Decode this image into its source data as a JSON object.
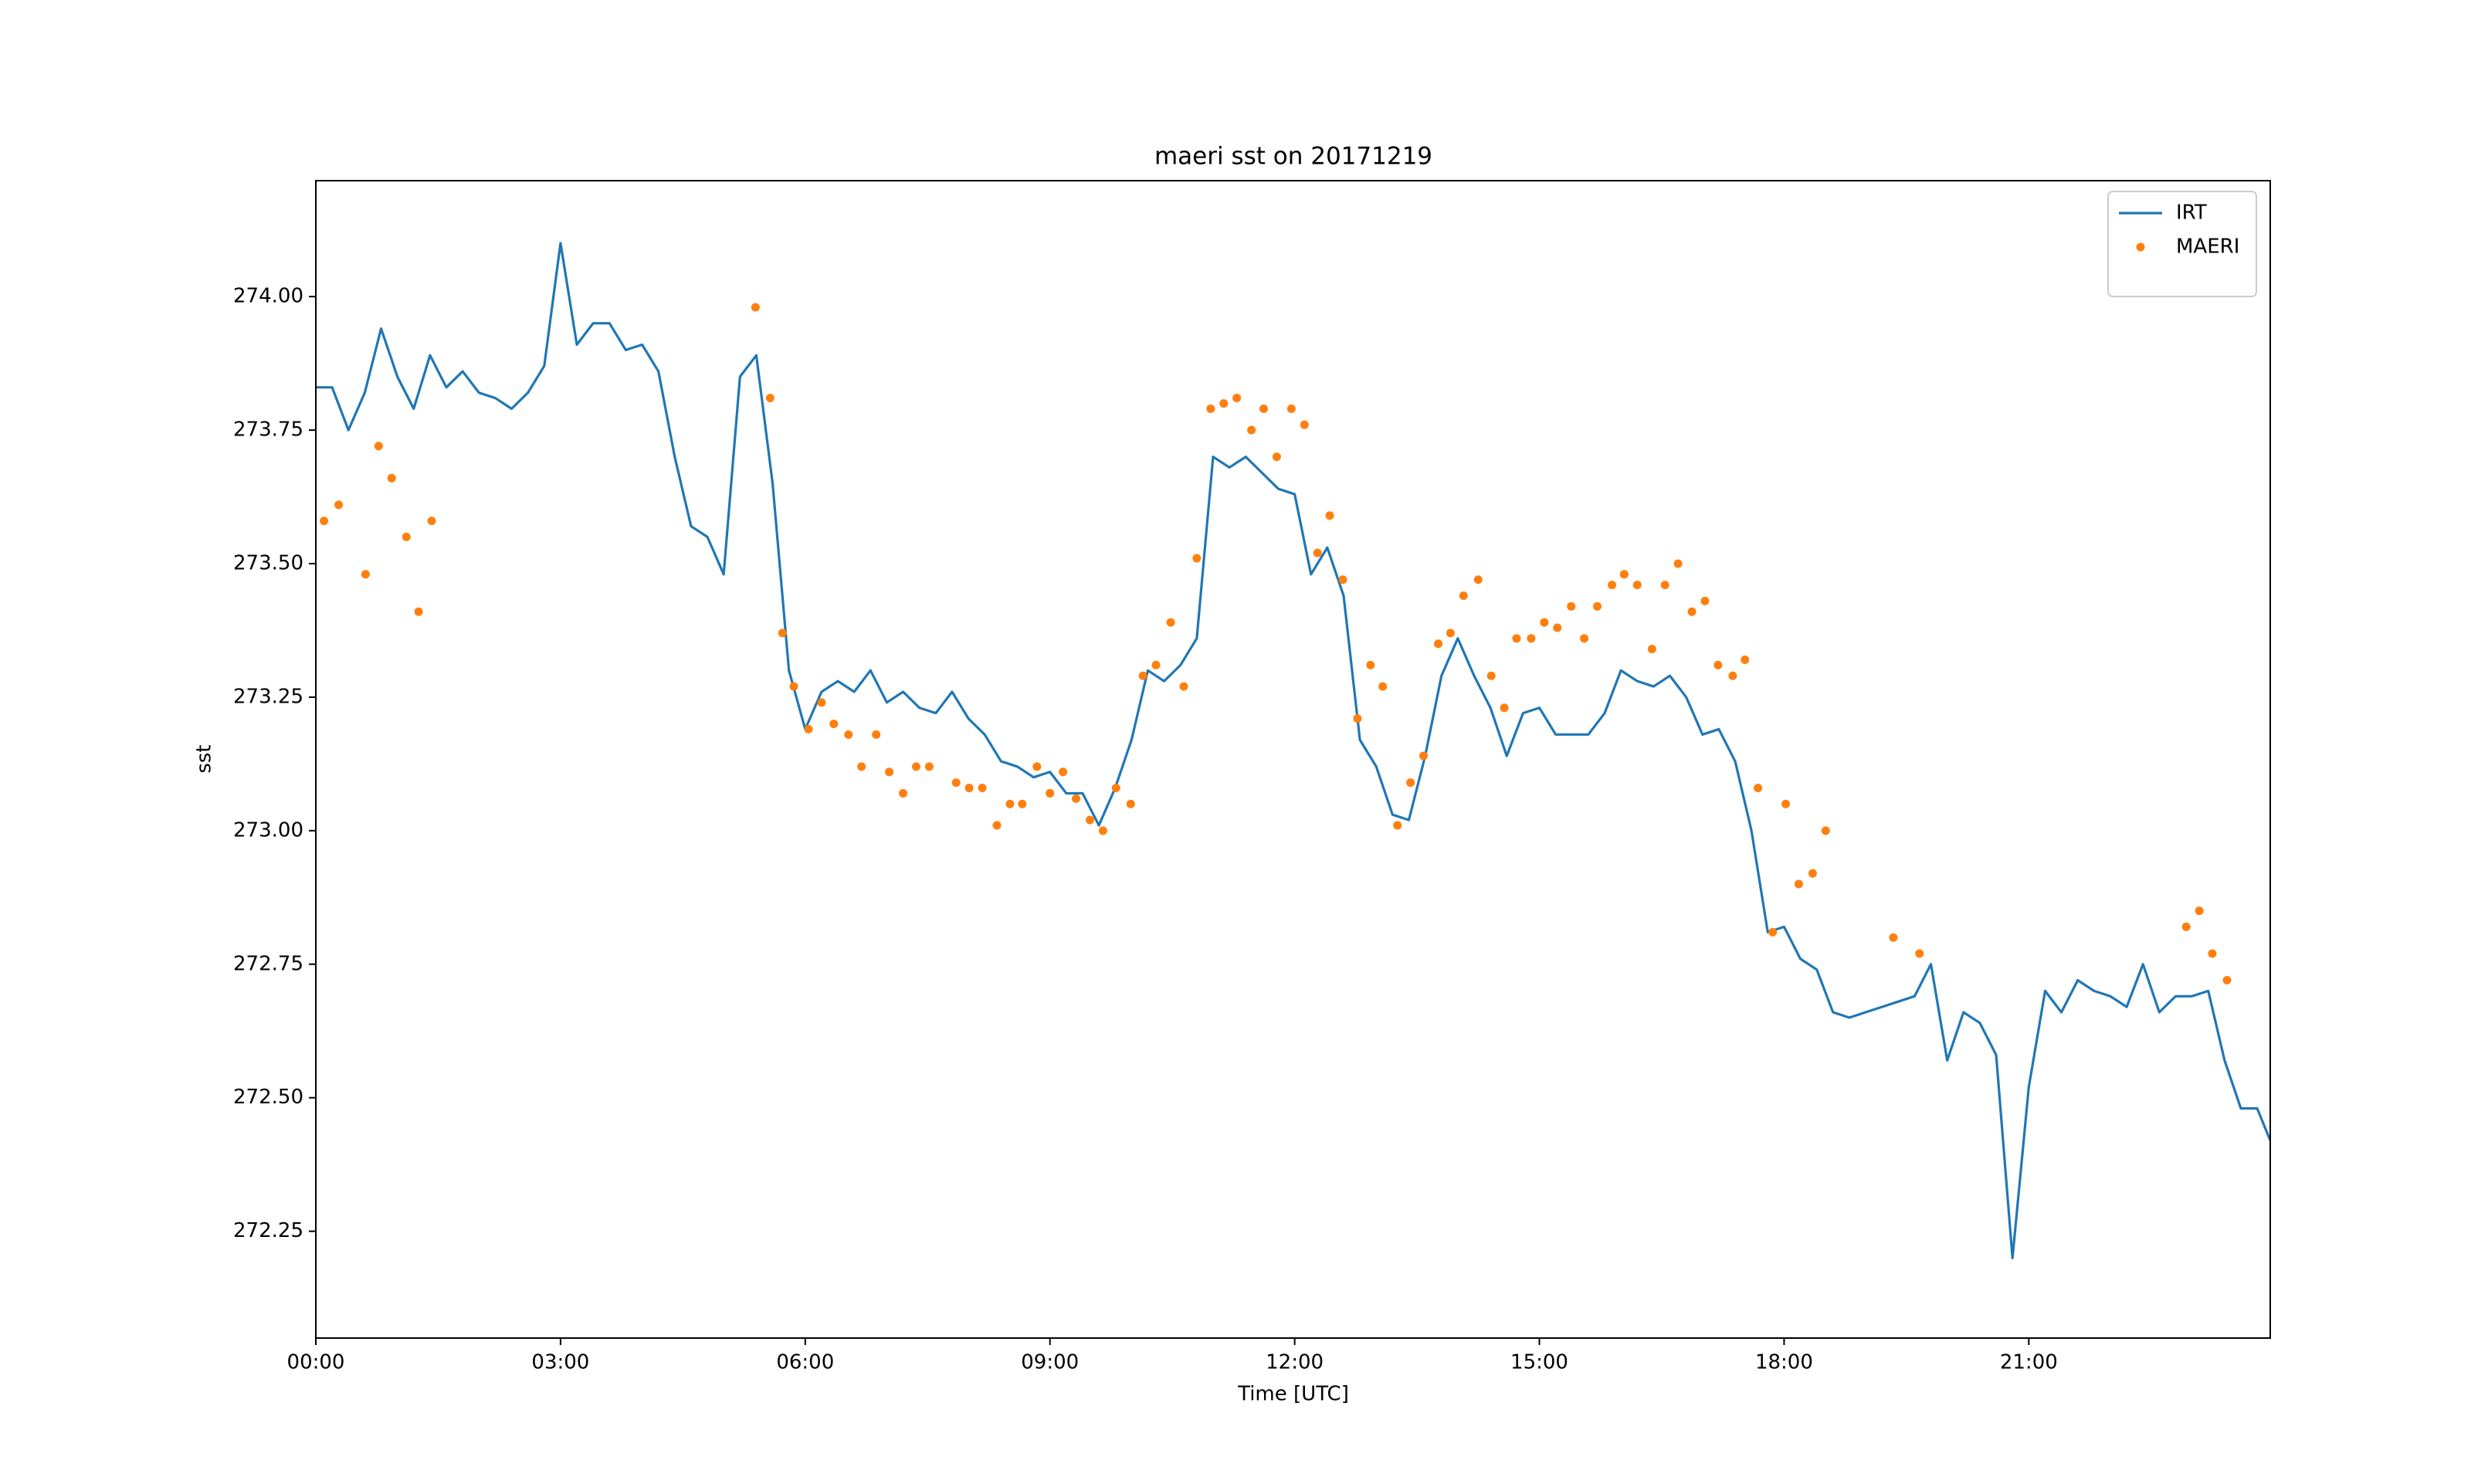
{
  "chart_data": {
    "type": "line",
    "title": "maeri sst on 20171219",
    "x_label": "Time [UTC]",
    "y_label": "sst",
    "legend": "upper right",
    "xlim": [
      0,
      23.96
    ],
    "ylim": [
      272.05,
      274.217
    ],
    "xticks": [
      {
        "value": 0,
        "label": "00:00"
      },
      {
        "value": 3,
        "label": "03:00"
      },
      {
        "value": 6,
        "label": "06:00"
      },
      {
        "value": 9,
        "label": "09:00"
      },
      {
        "value": 12,
        "label": "12:00"
      },
      {
        "value": 15,
        "label": "15:00"
      },
      {
        "value": 18,
        "label": "18:00"
      },
      {
        "value": 21,
        "label": "21:00"
      }
    ],
    "yticks": [
      {
        "value": 272.25,
        "label": "272.25"
      },
      {
        "value": 272.5,
        "label": "272.50"
      },
      {
        "value": 272.75,
        "label": "272.75"
      },
      {
        "value": 273,
        "label": "273.00"
      },
      {
        "value": 273.25,
        "label": "273.25"
      },
      {
        "value": 273.5,
        "label": "273.50"
      },
      {
        "value": 273.75,
        "label": "273.75"
      },
      {
        "value": 274,
        "label": "274.00"
      }
    ],
    "series": [
      {
        "name": "IRT",
        "style": "line",
        "color": "#1f77b4",
        "x": [
          0,
          0.2,
          0.4,
          0.6,
          0.8,
          1,
          1.2,
          1.4,
          1.6,
          1.8,
          2,
          2.2,
          2.4,
          2.6,
          2.8,
          3,
          3.2,
          3.4,
          3.6,
          3.8,
          4,
          4.2,
          4.4,
          4.6,
          4.8,
          5,
          5.2,
          5.4,
          5.6,
          5.8,
          6,
          6.2,
          6.4,
          6.6,
          6.8,
          7,
          7.2,
          7.4,
          7.6,
          7.8,
          8,
          8.2,
          8.4,
          8.6,
          8.8,
          9,
          9.2,
          9.4,
          9.6,
          9.8,
          10,
          10.2,
          10.4,
          10.6,
          10.8,
          11,
          11.2,
          11.4,
          11.6,
          11.8,
          12,
          12.2,
          12.4,
          12.6,
          12.8,
          13,
          13.2,
          13.4,
          13.6,
          13.8,
          14,
          14.2,
          14.4,
          14.6,
          14.8,
          15,
          15.2,
          15.4,
          15.6,
          15.8,
          16,
          16.2,
          16.4,
          16.6,
          16.8,
          17,
          17.2,
          17.4,
          17.6,
          17.8,
          18,
          18.2,
          18.4,
          18.6,
          18.8,
          19,
          19.2,
          19.4,
          19.6,
          19.8,
          20,
          20.2,
          20.4,
          20.6,
          20.8,
          21,
          21.2,
          21.4,
          21.6,
          21.8,
          22,
          22.2,
          22.4,
          22.6,
          22.8,
          23,
          23.2,
          23.4,
          23.6,
          23.8,
          23.96
        ],
        "values": [
          273.83,
          273.83,
          273.75,
          273.82,
          273.94,
          273.85,
          273.79,
          273.89,
          273.83,
          273.86,
          273.82,
          273.81,
          273.79,
          273.82,
          273.87,
          274.1,
          273.91,
          273.95,
          273.95,
          273.9,
          273.91,
          273.86,
          273.7,
          273.57,
          273.55,
          273.48,
          273.85,
          273.89,
          273.65,
          273.3,
          273.19,
          273.26,
          273.28,
          273.26,
          273.3,
          273.24,
          273.26,
          273.23,
          273.22,
          273.26,
          273.21,
          273.18,
          273.13,
          273.12,
          273.1,
          273.11,
          273.07,
          273.07,
          273.01,
          273.08,
          273.17,
          273.3,
          273.28,
          273.31,
          273.36,
          273.7,
          273.68,
          273.7,
          273.67,
          273.64,
          273.63,
          273.48,
          273.53,
          273.44,
          273.17,
          273.12,
          273.03,
          273.02,
          273.14,
          273.29,
          273.36,
          273.29,
          273.23,
          273.14,
          273.22,
          273.23,
          273.18,
          273.18,
          273.18,
          273.22,
          273.3,
          273.28,
          273.27,
          273.29,
          273.25,
          273.18,
          273.19,
          273.13,
          273,
          272.81,
          272.82,
          272.76,
          272.74,
          272.66,
          272.65,
          272.66,
          272.67,
          272.68,
          272.69,
          272.75,
          272.57,
          272.66,
          272.64,
          272.58,
          272.2,
          272.52,
          272.7,
          272.66,
          272.72,
          272.7,
          272.69,
          272.67,
          272.75,
          272.66,
          272.69,
          272.69,
          272.7,
          272.57,
          272.48,
          272.48,
          272.42
        ]
      },
      {
        "name": "MAERI",
        "style": "marker",
        "color": "#ff7f0e",
        "x": [
          0.1,
          0.28,
          0.61,
          0.77,
          0.93,
          1.11,
          1.26,
          1.42,
          5.39,
          5.57,
          5.72,
          5.86,
          6.04,
          6.2,
          6.35,
          6.53,
          6.69,
          6.87,
          7.03,
          7.2,
          7.36,
          7.52,
          7.85,
          8.01,
          8.17,
          8.35,
          8.51,
          8.66,
          8.84,
          9,
          9.16,
          9.32,
          9.49,
          9.65,
          9.81,
          9.99,
          10.14,
          10.3,
          10.48,
          10.64,
          10.8,
          10.97,
          11.13,
          11.29,
          11.47,
          11.62,
          11.78,
          11.96,
          12.12,
          12.28,
          12.43,
          12.59,
          12.77,
          12.93,
          13.08,
          13.26,
          13.42,
          13.58,
          13.76,
          13.91,
          14.07,
          14.25,
          14.41,
          14.57,
          14.72,
          14.9,
          15.06,
          15.22,
          15.39,
          15.55,
          15.71,
          15.89,
          16.04,
          16.2,
          16.38,
          16.54,
          16.7,
          16.87,
          17.03,
          17.19,
          17.37,
          17.52,
          17.68,
          17.86,
          18.02,
          18.18,
          18.35,
          18.51,
          19.34,
          19.66,
          22.93,
          23.09,
          23.25,
          23.43
        ],
        "values": [
          273.58,
          273.61,
          273.48,
          273.72,
          273.66,
          273.55,
          273.41,
          273.58,
          273.98,
          273.81,
          273.37,
          273.27,
          273.19,
          273.24,
          273.2,
          273.18,
          273.12,
          273.18,
          273.11,
          273.07,
          273.12,
          273.12,
          273.09,
          273.08,
          273.08,
          273.01,
          273.05,
          273.05,
          273.12,
          273.07,
          273.11,
          273.06,
          273.02,
          273,
          273.08,
          273.05,
          273.29,
          273.31,
          273.39,
          273.27,
          273.51,
          273.79,
          273.8,
          273.81,
          273.75,
          273.79,
          273.7,
          273.79,
          273.76,
          273.52,
          273.59,
          273.47,
          273.21,
          273.31,
          273.27,
          273.01,
          273.09,
          273.14,
          273.35,
          273.37,
          273.44,
          273.47,
          273.29,
          273.23,
          273.36,
          273.36,
          273.39,
          273.38,
          273.42,
          273.36,
          273.42,
          273.46,
          273.48,
          273.46,
          273.34,
          273.46,
          273.5,
          273.41,
          273.43,
          273.31,
          273.29,
          273.32,
          273.08,
          272.81,
          273.05,
          272.9,
          272.92,
          273,
          272.8,
          272.77,
          272.82,
          272.85,
          272.77,
          272.72
        ]
      }
    ]
  }
}
